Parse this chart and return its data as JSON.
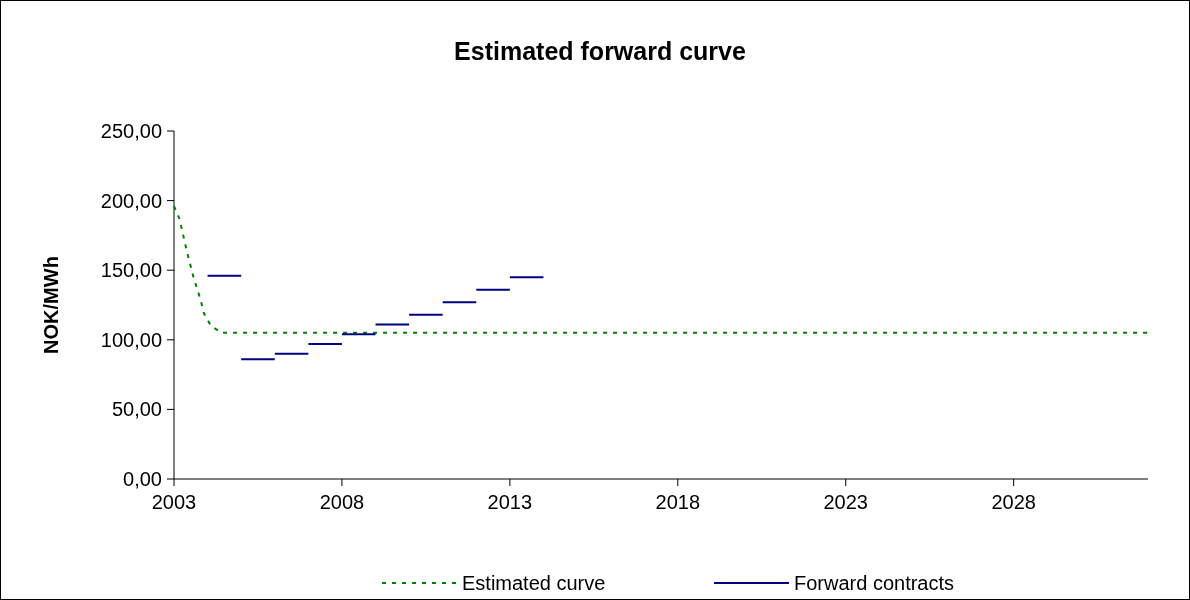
{
  "chart_data": {
    "type": "line",
    "title": "Estimated forward curve",
    "ylabel": "NOK/MWh",
    "xlim": [
      2003,
      2032
    ],
    "xticks": [
      2003,
      2008,
      2013,
      2018,
      2023,
      2028
    ],
    "ylim": [
      0,
      250
    ],
    "yticks": [
      {
        "value": 0,
        "label": "0,00"
      },
      {
        "value": 50,
        "label": "50,00"
      },
      {
        "value": 100,
        "label": "100,00"
      },
      {
        "value": 150,
        "label": "150,00"
      },
      {
        "value": 200,
        "label": "200,00"
      },
      {
        "value": 250,
        "label": "250,00"
      }
    ],
    "grid": false,
    "legend": "bottom",
    "marker": "none",
    "series": [
      {
        "name": "Estimated curve",
        "color": "#008000",
        "line_style": "dotted",
        "x": [
          2003,
          2003.16,
          2003.4,
          2003.58,
          2003.8,
          2003.89,
          2004.1,
          2004.42,
          2032
        ],
        "values": [
          196,
          187,
          162,
          145,
          128,
          119,
          110,
          105,
          105
        ]
      },
      {
        "name": "Forward contracts",
        "color": "#000080",
        "line_style": "solid",
        "x": [
          2004,
          2005
        ],
        "values": [
          146,
          146
        ]
      },
      {
        "color": "#000080",
        "line_style": "solid",
        "x": [
          2005,
          2006
        ],
        "values": [
          86,
          86
        ]
      },
      {
        "color": "#000080",
        "line_style": "solid",
        "x": [
          2006,
          2007
        ],
        "values": [
          90,
          90
        ]
      },
      {
        "color": "#000080",
        "line_style": "solid",
        "x": [
          2007,
          2008
        ],
        "values": [
          97,
          97
        ]
      },
      {
        "color": "#000080",
        "line_style": "solid",
        "x": [
          2008,
          2009
        ],
        "values": [
          104,
          104
        ]
      },
      {
        "color": "#000080",
        "line_style": "solid",
        "x": [
          2009,
          2010
        ],
        "values": [
          111,
          111
        ]
      },
      {
        "color": "#000080",
        "line_style": "solid",
        "x": [
          2010,
          2011
        ],
        "values": [
          118,
          118
        ]
      },
      {
        "color": "#000080",
        "line_style": "solid",
        "x": [
          2011,
          2012
        ],
        "values": [
          127,
          127
        ]
      },
      {
        "color": "#000080",
        "line_style": "solid",
        "x": [
          2012,
          2013
        ],
        "values": [
          136,
          136
        ]
      },
      {
        "color": "#000080",
        "line_style": "solid",
        "x": [
          2013,
          2014
        ],
        "values": [
          145,
          145
        ]
      }
    ]
  }
}
